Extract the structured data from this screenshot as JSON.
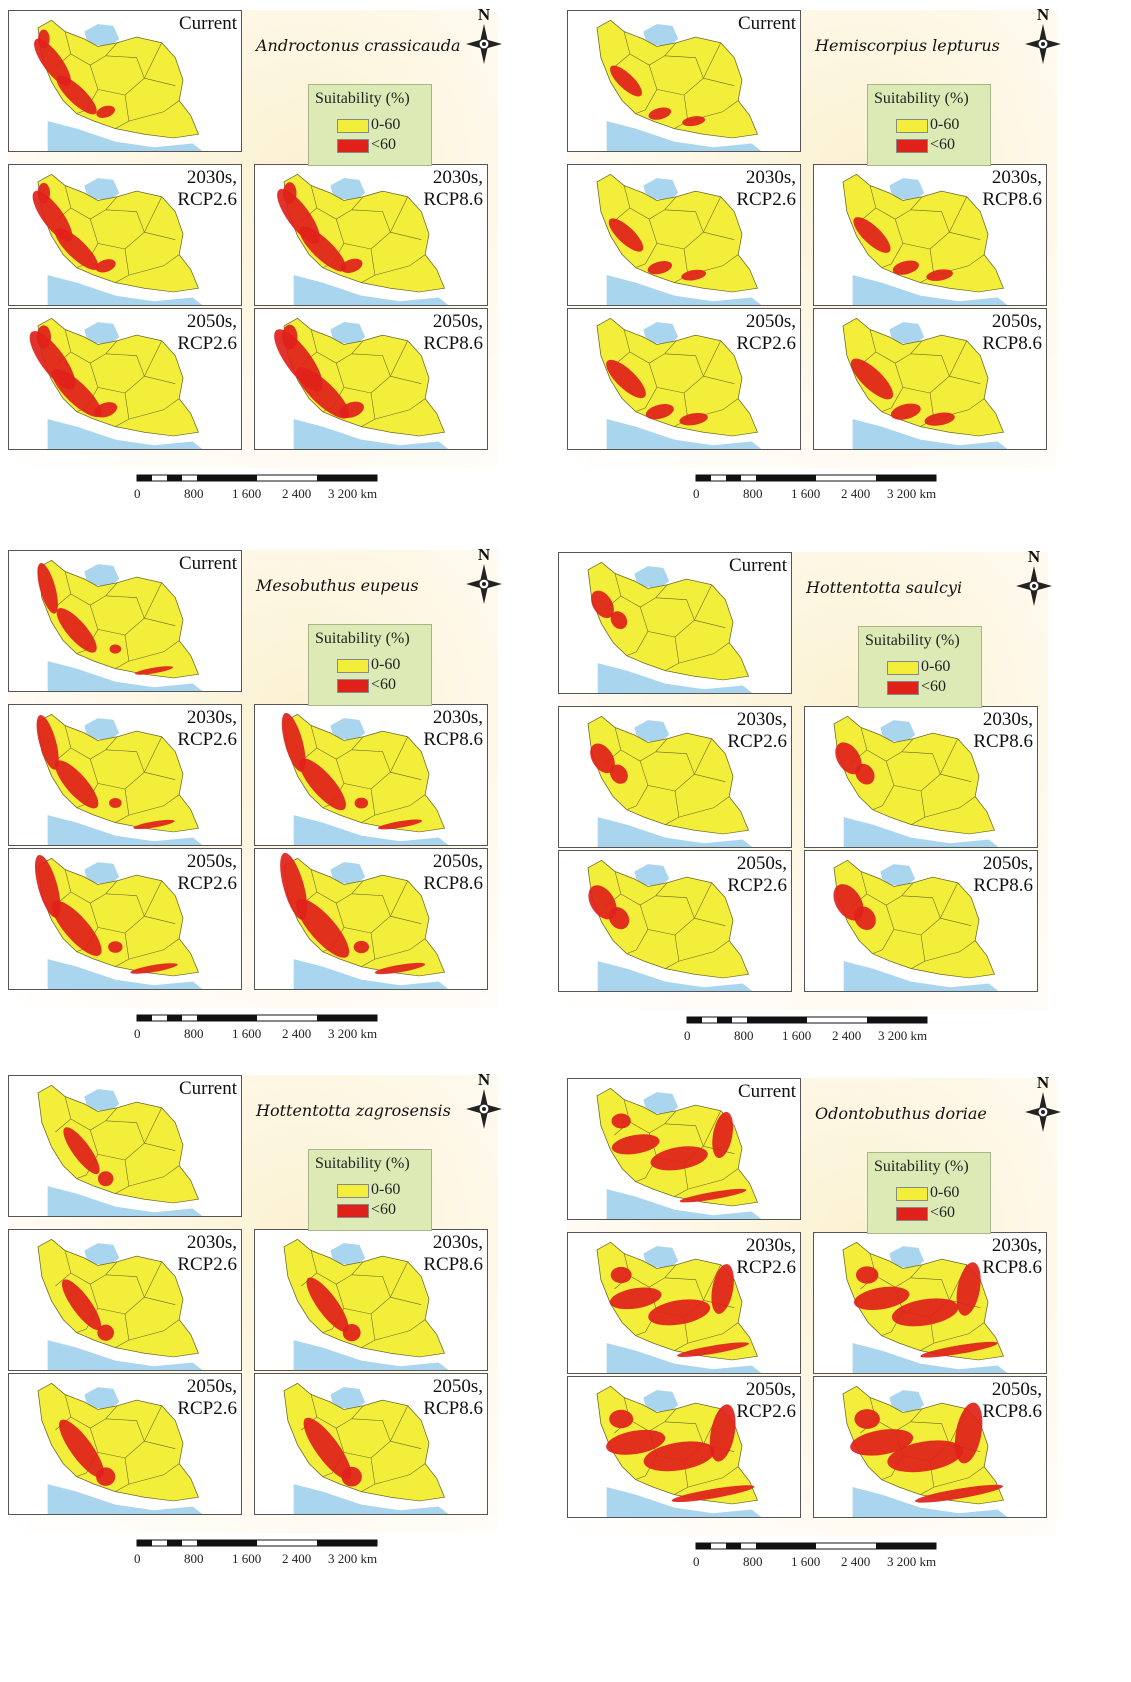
{
  "legend": {
    "title": "Suitability (%)",
    "items": [
      {
        "label": "0-60",
        "color": "#f2ee3a"
      },
      {
        "label": "<60",
        "color": "#e0211a"
      }
    ]
  },
  "compass_label": "N",
  "scale": {
    "ticks": [
      "0",
      "800",
      "1 600",
      "2 400",
      "3 200 km"
    ]
  },
  "maps": [
    {
      "label": "Current"
    },
    {
      "label": "2030s,\nRCP2.6"
    },
    {
      "label": "2030s,\nRCP8.6"
    },
    {
      "label": "2050s,\nRCP2.6"
    },
    {
      "label": "2050s,\nRCP8.6"
    }
  ],
  "panels": [
    {
      "species": "Androctonus crassicauda"
    },
    {
      "species": "Hemiscorpius lepturus"
    },
    {
      "species": "Mesobuthus eupeus"
    },
    {
      "species": "Hottentotta saulcyi"
    },
    {
      "species": "Hottentotta zagrosensis"
    },
    {
      "species": "Odontobuthus doriae"
    }
  ],
  "colors": {
    "land": "#f2ee3a",
    "sea": "#a9d5ee",
    "suitable": "#e0211a",
    "border": "#6b6a2a",
    "panel_bg": "#fbf2d2"
  }
}
